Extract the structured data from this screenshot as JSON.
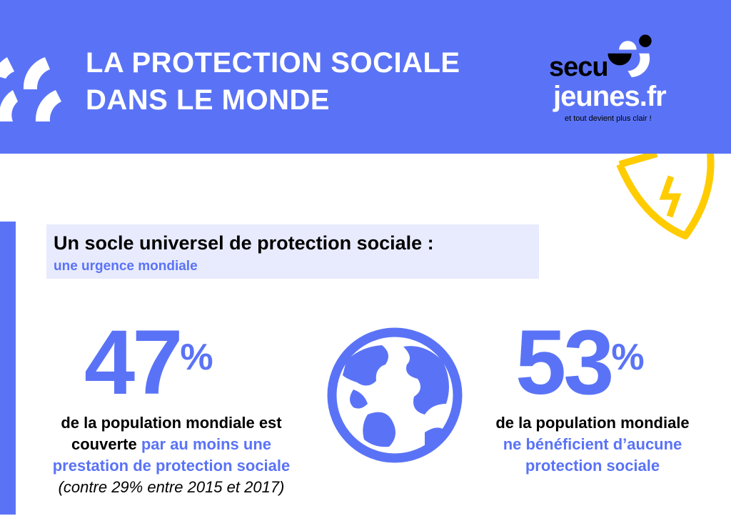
{
  "header": {
    "title_line1": "LA PROTECTION SOCIALE",
    "title_line2": "DANS LE MONDE",
    "logo": {
      "secu": "secu",
      "jeunes": "jeunes.fr",
      "tagline": "et tout devient plus clair !"
    }
  },
  "section": {
    "heading": "Un socle universel de protection sociale :",
    "subheading": "une urgence mondiale"
  },
  "stat_left": {
    "value": "47",
    "unit": "%",
    "text_black": "de la population mondiale est couverte",
    "text_blue": "par au moins une prestation de protection sociale",
    "text_italic": "(contre 29% entre 2015 et 2017)"
  },
  "stat_right": {
    "value": "53",
    "unit": "%",
    "text_black": "de la population mondiale",
    "text_blue": "ne bénéficient d’aucune protection sociale"
  },
  "colors": {
    "brand_blue": "#5a73f6",
    "light_box": "#e8ebfd",
    "accent_yellow": "#ffcc00"
  },
  "icons": [
    "arc-decoration-icon",
    "shield-lightning-icon",
    "globe-icon"
  ]
}
